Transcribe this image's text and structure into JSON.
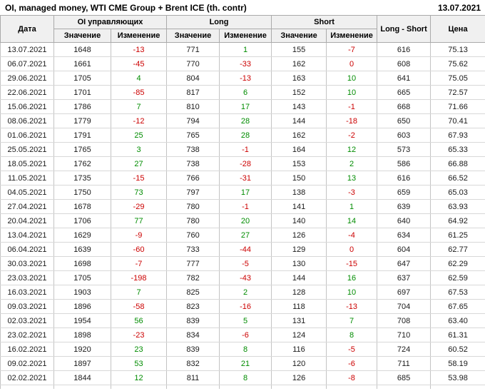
{
  "title": "OI, managed money, WTI CME Group + Brent ICE (th. contr)",
  "report_date": "13.07.2021",
  "table": {
    "headers": {
      "date": "Дата",
      "group_oi": "OI управляющих",
      "group_long": "Long",
      "group_short": "Short",
      "long_short": "Long - Short",
      "price": "Цена",
      "sub_value": "Значение",
      "sub_change": "Изменение"
    },
    "colors": {
      "positive": "#008c00",
      "negative": "#cc0000",
      "header_bg": "#f0f0f0",
      "text": "#1a1a1a"
    },
    "rows": [
      {
        "date": "13.07.2021",
        "oi": "1648",
        "oi_chg": -13,
        "long": "771",
        "long_chg": 1,
        "short": "155",
        "short_chg": -7,
        "long_short": "616",
        "price": "75.13"
      },
      {
        "date": "06.07.2021",
        "oi": "1661",
        "oi_chg": -45,
        "long": "770",
        "long_chg": -33,
        "short": "162",
        "short_chg": 0,
        "long_short": "608",
        "price": "75.62"
      },
      {
        "date": "29.06.2021",
        "oi": "1705",
        "oi_chg": 4,
        "long": "804",
        "long_chg": -13,
        "short": "163",
        "short_chg": 10,
        "long_short": "641",
        "price": "75.05"
      },
      {
        "date": "22.06.2021",
        "oi": "1701",
        "oi_chg": -85,
        "long": "817",
        "long_chg": 6,
        "short": "152",
        "short_chg": 10,
        "long_short": "665",
        "price": "72.57"
      },
      {
        "date": "15.06.2021",
        "oi": "1786",
        "oi_chg": 7,
        "long": "810",
        "long_chg": 17,
        "short": "143",
        "short_chg": -1,
        "long_short": "668",
        "price": "71.66"
      },
      {
        "date": "08.06.2021",
        "oi": "1779",
        "oi_chg": -12,
        "long": "794",
        "long_chg": 28,
        "short": "144",
        "short_chg": -18,
        "long_short": "650",
        "price": "70.41"
      },
      {
        "date": "01.06.2021",
        "oi": "1791",
        "oi_chg": 25,
        "long": "765",
        "long_chg": 28,
        "short": "162",
        "short_chg": -2,
        "long_short": "603",
        "price": "67.93"
      },
      {
        "date": "25.05.2021",
        "oi": "1765",
        "oi_chg": 3,
        "long": "738",
        "long_chg": -1,
        "short": "164",
        "short_chg": 12,
        "long_short": "573",
        "price": "65.33"
      },
      {
        "date": "18.05.2021",
        "oi": "1762",
        "oi_chg": 27,
        "long": "738",
        "long_chg": -28,
        "short": "153",
        "short_chg": 2,
        "long_short": "586",
        "price": "66.88"
      },
      {
        "date": "11.05.2021",
        "oi": "1735",
        "oi_chg": -15,
        "long": "766",
        "long_chg": -31,
        "short": "150",
        "short_chg": 13,
        "long_short": "616",
        "price": "66.52"
      },
      {
        "date": "04.05.2021",
        "oi": "1750",
        "oi_chg": 73,
        "long": "797",
        "long_chg": 17,
        "short": "138",
        "short_chg": -3,
        "long_short": "659",
        "price": "65.03"
      },
      {
        "date": "27.04.2021",
        "oi": "1678",
        "oi_chg": -29,
        "long": "780",
        "long_chg": -1,
        "short": "141",
        "short_chg": 1,
        "long_short": "639",
        "price": "63.93"
      },
      {
        "date": "20.04.2021",
        "oi": "1706",
        "oi_chg": 77,
        "long": "780",
        "long_chg": 20,
        "short": "140",
        "short_chg": 14,
        "long_short": "640",
        "price": "64.92"
      },
      {
        "date": "13.04.2021",
        "oi": "1629",
        "oi_chg": -9,
        "long": "760",
        "long_chg": 27,
        "short": "126",
        "short_chg": -4,
        "long_short": "634",
        "price": "61.25"
      },
      {
        "date": "06.04.2021",
        "oi": "1639",
        "oi_chg": -60,
        "long": "733",
        "long_chg": -44,
        "short": "129",
        "short_chg": 0,
        "long_short": "604",
        "price": "62.77"
      },
      {
        "date": "30.03.2021",
        "oi": "1698",
        "oi_chg": -7,
        "long": "777",
        "long_chg": -5,
        "short": "130",
        "short_chg": -15,
        "long_short": "647",
        "price": "62.29"
      },
      {
        "date": "23.03.2021",
        "oi": "1705",
        "oi_chg": -198,
        "long": "782",
        "long_chg": -43,
        "short": "144",
        "short_chg": 16,
        "long_short": "637",
        "price": "62.59"
      },
      {
        "date": "16.03.2021",
        "oi": "1903",
        "oi_chg": 7,
        "long": "825",
        "long_chg": 2,
        "short": "128",
        "short_chg": 10,
        "long_short": "697",
        "price": "67.53"
      },
      {
        "date": "09.03.2021",
        "oi": "1896",
        "oi_chg": -58,
        "long": "823",
        "long_chg": -16,
        "short": "118",
        "short_chg": -13,
        "long_short": "704",
        "price": "67.65"
      },
      {
        "date": "02.03.2021",
        "oi": "1954",
        "oi_chg": 56,
        "long": "839",
        "long_chg": 5,
        "short": "131",
        "short_chg": 7,
        "long_short": "708",
        "price": "63.40"
      },
      {
        "date": "23.02.2021",
        "oi": "1898",
        "oi_chg": -23,
        "long": "834",
        "long_chg": -6,
        "short": "124",
        "short_chg": 8,
        "long_short": "710",
        "price": "61.31"
      },
      {
        "date": "16.02.2021",
        "oi": "1920",
        "oi_chg": 23,
        "long": "839",
        "long_chg": 8,
        "short": "116",
        "short_chg": -5,
        "long_short": "724",
        "price": "60.52"
      },
      {
        "date": "09.02.2021",
        "oi": "1897",
        "oi_chg": 53,
        "long": "832",
        "long_chg": 21,
        "short": "120",
        "short_chg": -6,
        "long_short": "711",
        "price": "58.19"
      },
      {
        "date": "02.02.2021",
        "oi": "1844",
        "oi_chg": 12,
        "long": "811",
        "long_chg": 8,
        "short": "126",
        "short_chg": -8,
        "long_short": "685",
        "price": "53.98"
      }
    ]
  }
}
